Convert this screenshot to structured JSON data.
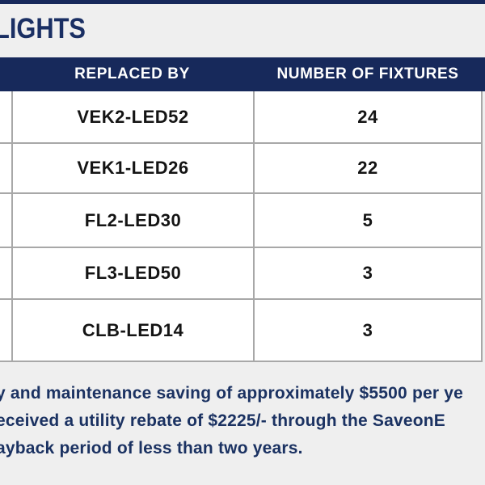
{
  "page": {
    "title": "LIGHTS"
  },
  "colors": {
    "navy": "#17295B",
    "title": "#1A2F63",
    "text_dark": "#141414",
    "summary": "#1B3262",
    "background": "#EFEFEF",
    "border": "#A8A8A8",
    "white": "#FFFFFF"
  },
  "table": {
    "headers": [
      "REPLACED BY",
      "NUMBER OF FIXTURES"
    ],
    "rows": [
      {
        "replaced_by": "VEK2-LED52",
        "fixtures": "24"
      },
      {
        "replaced_by": "VEK1-LED26",
        "fixtures": "22"
      },
      {
        "replaced_by": "FL2-LED30",
        "fixtures": "5"
      },
      {
        "replaced_by": "FL3-LED50",
        "fixtures": "3"
      },
      {
        "replaced_by": "CLB-LED14",
        "fixtures": "3"
      }
    ]
  },
  "summary": {
    "lines": [
      "y and maintenance saving of approximately $5500 per ye",
      "eceived a utility rebate of $2225/- through the SaveonE",
      "ayback period of less than two years."
    ]
  }
}
